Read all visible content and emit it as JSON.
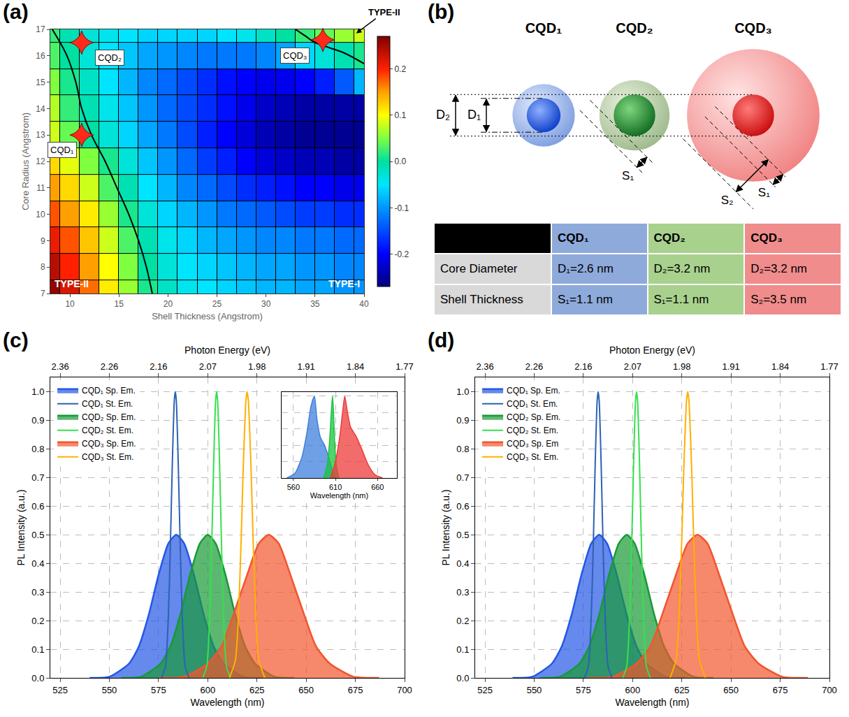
{
  "chart_data": [
    {
      "panel": "(a)",
      "type": "heatmap",
      "x_label": "Shell Thickness (Angstrom)",
      "y_label": "Core Radius (Angstrom)",
      "x": [
        8,
        10,
        12,
        14,
        16,
        18,
        20,
        22,
        24,
        26,
        28,
        30,
        32,
        34,
        36,
        38,
        40
      ],
      "y": [
        7,
        8,
        9,
        10,
        11,
        12,
        13,
        14,
        15,
        16,
        17
      ],
      "z": [
        [
          0.26,
          0.22,
          0.17,
          0.11,
          0.06,
          0.01,
          -0.02,
          -0.04,
          -0.05,
          -0.06,
          -0.07,
          -0.08,
          -0.08,
          -0.09,
          -0.09,
          -0.1,
          -0.1
        ],
        [
          0.24,
          0.2,
          0.15,
          0.1,
          0.05,
          0.0,
          -0.03,
          -0.05,
          -0.06,
          -0.07,
          -0.08,
          -0.09,
          -0.09,
          -0.1,
          -0.1,
          -0.11,
          -0.11
        ],
        [
          0.21,
          0.18,
          0.13,
          0.08,
          0.03,
          -0.01,
          -0.04,
          -0.06,
          -0.08,
          -0.09,
          -0.1,
          -0.11,
          -0.11,
          -0.12,
          -0.12,
          -0.13,
          -0.13
        ],
        [
          0.18,
          0.15,
          0.11,
          0.06,
          0.01,
          -0.03,
          -0.06,
          -0.08,
          -0.1,
          -0.12,
          -0.13,
          -0.14,
          -0.15,
          -0.16,
          -0.16,
          -0.17,
          -0.17
        ],
        [
          0.15,
          0.12,
          0.08,
          0.03,
          -0.01,
          -0.05,
          -0.08,
          -0.11,
          -0.13,
          -0.15,
          -0.17,
          -0.18,
          -0.19,
          -0.2,
          -0.2,
          -0.21,
          -0.21
        ],
        [
          0.12,
          0.09,
          0.05,
          0.01,
          -0.03,
          -0.07,
          -0.1,
          -0.13,
          -0.16,
          -0.18,
          -0.2,
          -0.22,
          -0.23,
          -0.24,
          -0.24,
          -0.25,
          -0.25
        ],
        [
          0.08,
          0.04,
          0.0,
          -0.03,
          -0.06,
          -0.09,
          -0.12,
          -0.15,
          -0.18,
          -0.2,
          -0.22,
          -0.24,
          -0.25,
          -0.26,
          -0.26,
          -0.26,
          -0.26
        ],
        [
          0.07,
          0.02,
          -0.01,
          -0.04,
          -0.07,
          -0.1,
          -0.13,
          -0.15,
          -0.17,
          -0.19,
          -0.21,
          -0.23,
          -0.24,
          -0.25,
          -0.25,
          -0.25,
          -0.25
        ],
        [
          0.05,
          0.01,
          -0.02,
          -0.05,
          -0.08,
          -0.11,
          -0.13,
          -0.15,
          -0.17,
          -0.19,
          -0.2,
          -0.21,
          -0.21,
          -0.2,
          -0.18,
          -0.14,
          -0.08
        ],
        [
          0.03,
          0.0,
          -0.03,
          -0.05,
          -0.07,
          -0.09,
          -0.1,
          -0.11,
          -0.12,
          -0.12,
          -0.12,
          -0.11,
          -0.09,
          -0.06,
          -0.03,
          -0.01,
          0.01
        ],
        [
          0.02,
          -0.01,
          -0.03,
          -0.04,
          -0.05,
          -0.06,
          -0.06,
          -0.06,
          -0.06,
          -0.05,
          -0.04,
          -0.02,
          0.0,
          0.02,
          0.04,
          0.06,
          0.08
        ]
      ],
      "zlim": [
        -0.27,
        0.27
      ],
      "zticks": [
        -0.2,
        -0.1,
        {
          "value": 0,
          "label": "0.0"
        },
        0.1,
        0.2
      ],
      "xlim": [
        8,
        40
      ],
      "xticks": [
        10,
        15,
        20,
        25,
        30,
        35,
        40
      ],
      "ylim": [
        7,
        17
      ],
      "yticks": [
        7,
        8,
        9,
        10,
        11,
        12,
        13,
        14,
        15,
        16,
        17
      ],
      "grid": true,
      "boundaries": [
        {
          "x": [
            8.2,
            9.7,
            10.6,
            11.2,
            12.2,
            13.6,
            14.8,
            16.0,
            17.0,
            17.8,
            18.4
          ],
          "y": [
            17,
            16,
            15,
            14,
            13,
            12,
            11,
            10,
            9,
            8,
            7
          ]
        },
        {
          "x": [
            33,
            34,
            35,
            36.5,
            38,
            40
          ],
          "y": [
            17,
            16.75,
            16.5,
            16.3,
            16.1,
            15.7
          ]
        }
      ],
      "points": [
        {
          "label": "CQD₁",
          "x": 11.2,
          "y": 13
        },
        {
          "label": "CQD₂",
          "x": 11.2,
          "y": 16.5
        },
        {
          "label": "CQD₃",
          "x": 35.8,
          "y": 16.6
        }
      ],
      "marker": "star-diamond",
      "region_labels": [
        "TYPE-II",
        "TYPE-I",
        "TYPE-II"
      ]
    },
    {
      "panel": "(c)",
      "type": "line",
      "x_label": "Wavelength (nm)",
      "y_label": "PL Intensity (a.u.)",
      "x2_label": "Photon Energy (eV)",
      "xlim": [
        520,
        700
      ],
      "xticks": [
        525,
        550,
        575,
        600,
        625,
        650,
        675,
        700
      ],
      "x2ticks": [
        {
          "value": 525,
          "label": "2.36"
        },
        {
          "value": 550,
          "label": "2.26"
        },
        {
          "value": 575,
          "label": "2.16"
        },
        {
          "value": 600,
          "label": "2.07"
        },
        {
          "value": 625,
          "label": "1.98"
        },
        {
          "value": 650,
          "label": "1.91"
        },
        {
          "value": 675,
          "label": "1.84"
        },
        {
          "value": 700,
          "label": "1.77"
        }
      ],
      "ylim": [
        0,
        1.05
      ],
      "yticks": [
        {
          "value": 0,
          "label": "0.0"
        },
        0.1,
        0.2,
        0.3,
        0.4,
        0.5,
        0.6,
        0.7,
        0.8,
        0.9,
        {
          "value": 1,
          "label": "1.0"
        }
      ],
      "grid": true,
      "legend": "top left",
      "series": [
        {
          "name": "CQD₁ Sp. Em.",
          "type": "area",
          "color": "#2457e6",
          "x": [
            540,
            550,
            560,
            565,
            570,
            575,
            580,
            584,
            588,
            593,
            598,
            603,
            608,
            618,
            628
          ],
          "values": [
            0,
            0.004,
            0.05,
            0.11,
            0.22,
            0.36,
            0.47,
            0.5,
            0.47,
            0.36,
            0.22,
            0.11,
            0.05,
            0.004,
            0
          ]
        },
        {
          "name": "CQD₁ St. Em.",
          "type": "line",
          "color": "#2d62b3",
          "x": [
            576.5,
            578.5,
            580,
            581,
            582,
            583,
            583.5,
            584,
            585,
            586,
            587,
            588.5,
            590.5
          ],
          "values": [
            0,
            0.04,
            0.22,
            0.46,
            0.75,
            0.97,
            1,
            0.97,
            0.75,
            0.46,
            0.22,
            0.04,
            0
          ]
        },
        {
          "name": "CQD₂ Sp. Em.",
          "type": "area",
          "color": "#179a35",
          "x": [
            556,
            566,
            576,
            581,
            586,
            591,
            596,
            600,
            604,
            609,
            614,
            619,
            624,
            634,
            644
          ],
          "values": [
            0,
            0.004,
            0.05,
            0.11,
            0.22,
            0.36,
            0.47,
            0.5,
            0.47,
            0.36,
            0.22,
            0.11,
            0.05,
            0.004,
            0
          ]
        },
        {
          "name": "CQD₂ St. Em.",
          "type": "line",
          "color": "#37e04e",
          "x": [
            597.5,
            599.5,
            601,
            602,
            603,
            604,
            604.5,
            605,
            606,
            607,
            608,
            609.5,
            611.5
          ],
          "values": [
            0,
            0.04,
            0.22,
            0.46,
            0.75,
            0.97,
            1,
            0.97,
            0.75,
            0.46,
            0.22,
            0.04,
            0
          ]
        },
        {
          "name": "CQD₃ Sp. Em.",
          "type": "area",
          "color": "#f2552c",
          "x": [
            575,
            588,
            600,
            607,
            613,
            620,
            626,
            631,
            636,
            642,
            649,
            655,
            662,
            674,
            687
          ],
          "values": [
            0,
            0.004,
            0.05,
            0.11,
            0.22,
            0.36,
            0.47,
            0.5,
            0.47,
            0.36,
            0.22,
            0.11,
            0.05,
            0.004,
            0
          ]
        },
        {
          "name": "CQD₃ St. Em.",
          "type": "line",
          "color": "#ffb000",
          "x": [
            611,
            614,
            615.5,
            617,
            618,
            619.4,
            620,
            620.6,
            622,
            623,
            624.5,
            626,
            629
          ],
          "values": [
            0,
            0.06,
            0.2,
            0.49,
            0.73,
            0.97,
            1,
            0.97,
            0.73,
            0.49,
            0.2,
            0.06,
            0
          ]
        }
      ],
      "inset": {
        "x_label": "Wavelength (nm)",
        "xlim": [
          546,
          683
        ],
        "xticks": [
          560,
          610,
          660
        ],
        "ylim": [
          0,
          1.05
        ],
        "yticks": [
          0.2,
          0.4,
          0.6,
          0.8,
          1
        ],
        "tick_labels": "x",
        "grid": true,
        "series": [
          {
            "color": "#3f80dc",
            "x": [
              552,
              562,
              570,
              576,
              581,
              585,
              588,
              592,
              597,
              602,
              606,
              610
            ],
            "values": [
              0,
              0.06,
              0.25,
              0.55,
              0.88,
              1,
              0.72,
              0.5,
              0.4,
              0.25,
              0.1,
              0
            ]
          },
          {
            "color": "#18c43c",
            "x": [
              596,
              600,
              603,
              605,
              606.5,
              607.5,
              609,
              611,
              614
            ],
            "values": [
              0,
              0.15,
              0.45,
              0.8,
              1,
              0.85,
              0.45,
              0.15,
              0
            ]
          },
          {
            "color": "#ee3b3b",
            "x": [
              604,
              610,
              615,
              619,
              621,
              624,
              628,
              634,
              641,
              649,
              657,
              666
            ],
            "values": [
              0,
              0.2,
              0.5,
              0.85,
              1,
              0.82,
              0.62,
              0.52,
              0.36,
              0.16,
              0.04,
              0
            ]
          }
        ]
      }
    },
    {
      "panel": "(d)",
      "type": "line",
      "x_label": "Wavelength (nm)",
      "y_label": "PL Intensity (a.u.)",
      "x2_label": "Photon Energy (eV)",
      "xlim": [
        520,
        700
      ],
      "xticks": [
        525,
        550,
        575,
        600,
        625,
        650,
        675,
        700
      ],
      "x2ticks": [
        {
          "value": 525,
          "label": "2.36"
        },
        {
          "value": 550,
          "label": "2.26"
        },
        {
          "value": 575,
          "label": "2.16"
        },
        {
          "value": 600,
          "label": "2.07"
        },
        {
          "value": 625,
          "label": "1.98"
        },
        {
          "value": 650,
          "label": "1.91"
        },
        {
          "value": 675,
          "label": "1.84"
        },
        {
          "value": 700,
          "label": "1.77"
        }
      ],
      "ylim": [
        0,
        1.05
      ],
      "yticks": [
        {
          "value": 0,
          "label": "0.0"
        },
        0.1,
        0.2,
        0.3,
        0.4,
        0.5,
        0.6,
        0.7,
        0.8,
        0.9,
        {
          "value": 1,
          "label": "1.0"
        }
      ],
      "grid": true,
      "legend": "top left",
      "series": [
        {
          "name": "CQD₁ Sp. Em.",
          "type": "area",
          "color": "#2457e6",
          "x": [
            539,
            549,
            559,
            564,
            569,
            574,
            579,
            583,
            587,
            592,
            597,
            602,
            607,
            617,
            627
          ],
          "values": [
            0,
            0.004,
            0.05,
            0.11,
            0.22,
            0.36,
            0.47,
            0.5,
            0.47,
            0.36,
            0.22,
            0.11,
            0.05,
            0.004,
            0
          ]
        },
        {
          "name": "CQD₁ St. Em.",
          "type": "line",
          "color": "#2d62b3",
          "x": [
            575.5,
            577.5,
            579,
            580,
            581,
            582,
            582.5,
            583,
            584,
            585,
            586,
            587.5,
            589.5
          ],
          "values": [
            0,
            0.04,
            0.22,
            0.46,
            0.75,
            0.97,
            1,
            0.97,
            0.75,
            0.46,
            0.22,
            0.04,
            0
          ]
        },
        {
          "name": "CQD₂ Sp. Em.",
          "type": "area",
          "color": "#179a35",
          "x": [
            553,
            563,
            573,
            578,
            583,
            588,
            593,
            597,
            601,
            606,
            611,
            616,
            621,
            631,
            641
          ],
          "values": [
            0,
            0.004,
            0.05,
            0.11,
            0.22,
            0.36,
            0.47,
            0.5,
            0.47,
            0.36,
            0.22,
            0.11,
            0.05,
            0.004,
            0
          ]
        },
        {
          "name": "CQD₂ St. Em.",
          "type": "line",
          "color": "#37e04e",
          "x": [
            595,
            597,
            598.5,
            599.5,
            600.5,
            601.5,
            602,
            602.5,
            603.5,
            604.5,
            605.5,
            607,
            609
          ],
          "values": [
            0,
            0.04,
            0.22,
            0.46,
            0.75,
            0.97,
            1,
            0.97,
            0.75,
            0.46,
            0.22,
            0.04,
            0
          ]
        },
        {
          "name": "CQD₃ Sp. Em",
          "type": "area",
          "color": "#f2552c",
          "x": [
            577,
            590,
            602,
            609,
            615,
            622,
            628,
            633,
            638,
            644,
            651,
            657,
            664,
            676,
            689
          ],
          "values": [
            0,
            0.004,
            0.05,
            0.11,
            0.22,
            0.36,
            0.47,
            0.5,
            0.47,
            0.36,
            0.22,
            0.11,
            0.05,
            0.004,
            0
          ]
        },
        {
          "name": "CQD₃ St. Em.",
          "type": "line",
          "color": "#ffb000",
          "x": [
            619,
            622,
            623.5,
            625,
            626,
            627.4,
            628,
            628.6,
            630,
            631,
            632.5,
            634,
            637
          ],
          "values": [
            0,
            0.06,
            0.2,
            0.49,
            0.73,
            0.97,
            1,
            0.97,
            0.73,
            0.49,
            0.2,
            0.06,
            0
          ]
        }
      ]
    }
  ],
  "diagram": {
    "panel": "(b)",
    "spheres": [
      {
        "label": "CQD₁",
        "core_diameter_nm": 2.6,
        "shell_thickness_nm": 1.1
      },
      {
        "label": "CQD₂",
        "core_diameter_nm": 3.2,
        "shell_thickness_nm": 1.1
      },
      {
        "label": "CQD₃",
        "core_diameter_nm": 3.2,
        "shell_thickness_nm": 3.5
      }
    ],
    "core_labels": [
      "D₂",
      "D₁"
    ],
    "shell_labels": [
      "S₁",
      "S₁",
      "S₂"
    ],
    "table": {
      "columns": [
        "CQD₁",
        "CQD₂",
        "CQD₃"
      ],
      "rows": [
        {
          "label": "Core Diameter",
          "cells": [
            "D₁=2.6 nm",
            "D₂=3.2 nm",
            "D₂=3.2 nm"
          ]
        },
        {
          "label": "Shell Thickness",
          "cells": [
            "S₁=1.1 nm",
            "S₁=1.1 nm",
            "S₂=3.5 nm"
          ]
        }
      ]
    }
  }
}
